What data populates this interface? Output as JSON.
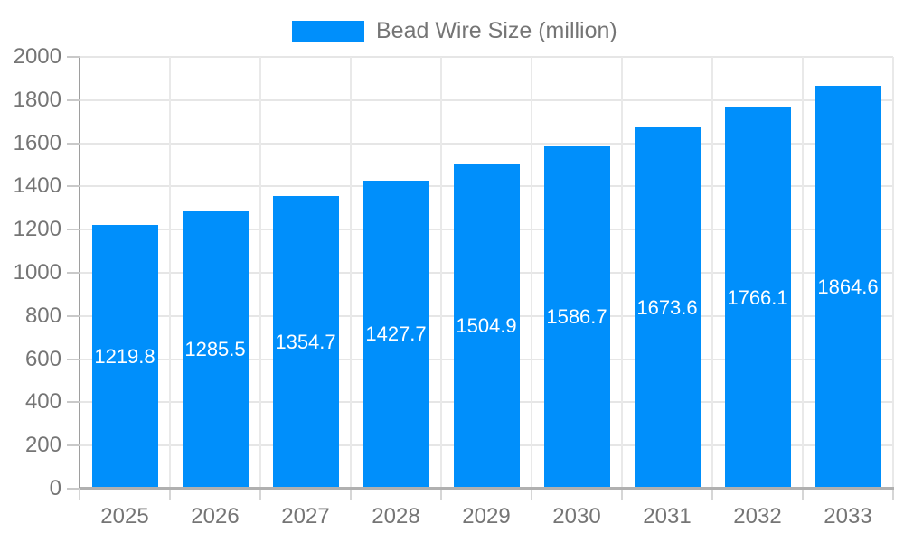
{
  "legend": {
    "label": "Bead Wire Size (million)"
  },
  "colors": {
    "bar": "#008FFB",
    "axis_text": "#757575",
    "grid": "#e6e6e6",
    "axis_line": "#9e9e9e",
    "baseline": "#b0b0b0",
    "bar_label_text": "#ffffff"
  },
  "chart_data": {
    "type": "bar",
    "title": "Bead Wire Size (million)",
    "categories": [
      "2025",
      "2026",
      "2027",
      "2028",
      "2029",
      "2030",
      "2031",
      "2032",
      "2033"
    ],
    "values": [
      1219.8,
      1285.5,
      1354.7,
      1427.7,
      1504.9,
      1586.7,
      1673.6,
      1766.1,
      1864.6
    ],
    "xlabel": "",
    "ylabel": "",
    "ylim": [
      0,
      2000
    ],
    "ytick_step": 200,
    "ytick_labels": [
      "0",
      "200",
      "400",
      "600",
      "800",
      "1000",
      "1200",
      "1400",
      "1600",
      "1800",
      "2000"
    ],
    "grid": "on",
    "legend_position": "top",
    "value_labels": "inside-middle"
  }
}
